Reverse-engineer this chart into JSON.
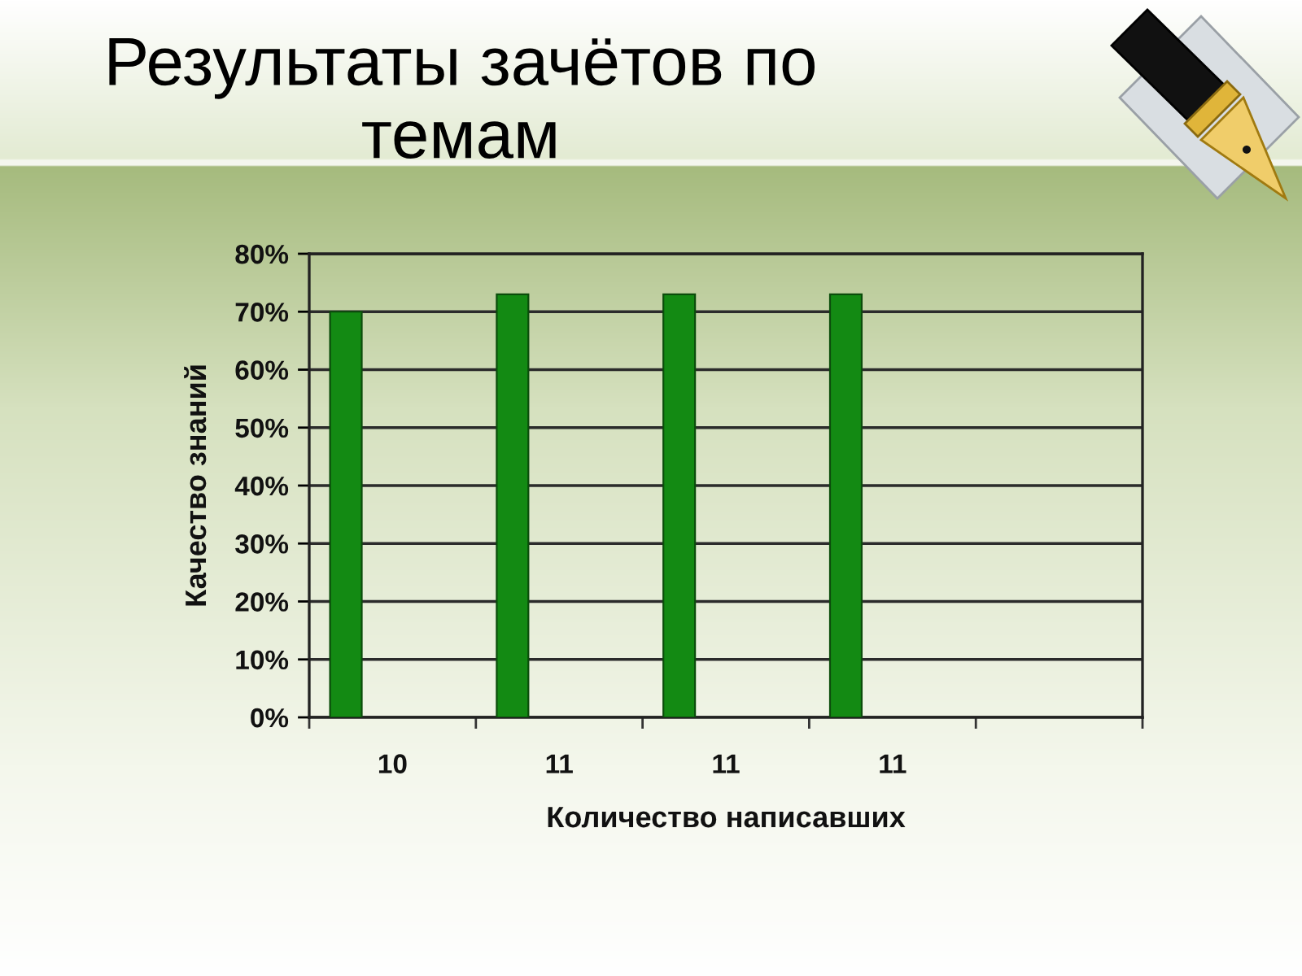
{
  "chart_data": {
    "type": "bar",
    "title": "Результаты зачётов по темам",
    "xlabel": "Количество написавших",
    "ylabel": "Качество знаний",
    "categories": [
      "10",
      "11",
      "11",
      "11",
      null
    ],
    "values": [
      70,
      73,
      73,
      73,
      null
    ],
    "color": "#138a13",
    "ylim": [
      0,
      80
    ],
    "yticks": [
      {
        "value": 0,
        "label": "0%"
      },
      {
        "value": 10,
        "label": "10%"
      },
      {
        "value": 20,
        "label": "20%"
      },
      {
        "value": 30,
        "label": "30%"
      },
      {
        "value": 40,
        "label": "40%"
      },
      {
        "value": 50,
        "label": "50%"
      },
      {
        "value": 60,
        "label": "60%"
      },
      {
        "value": 70,
        "label": "70%"
      },
      {
        "value": 80,
        "label": "80%"
      }
    ],
    "grid": "y"
  }
}
